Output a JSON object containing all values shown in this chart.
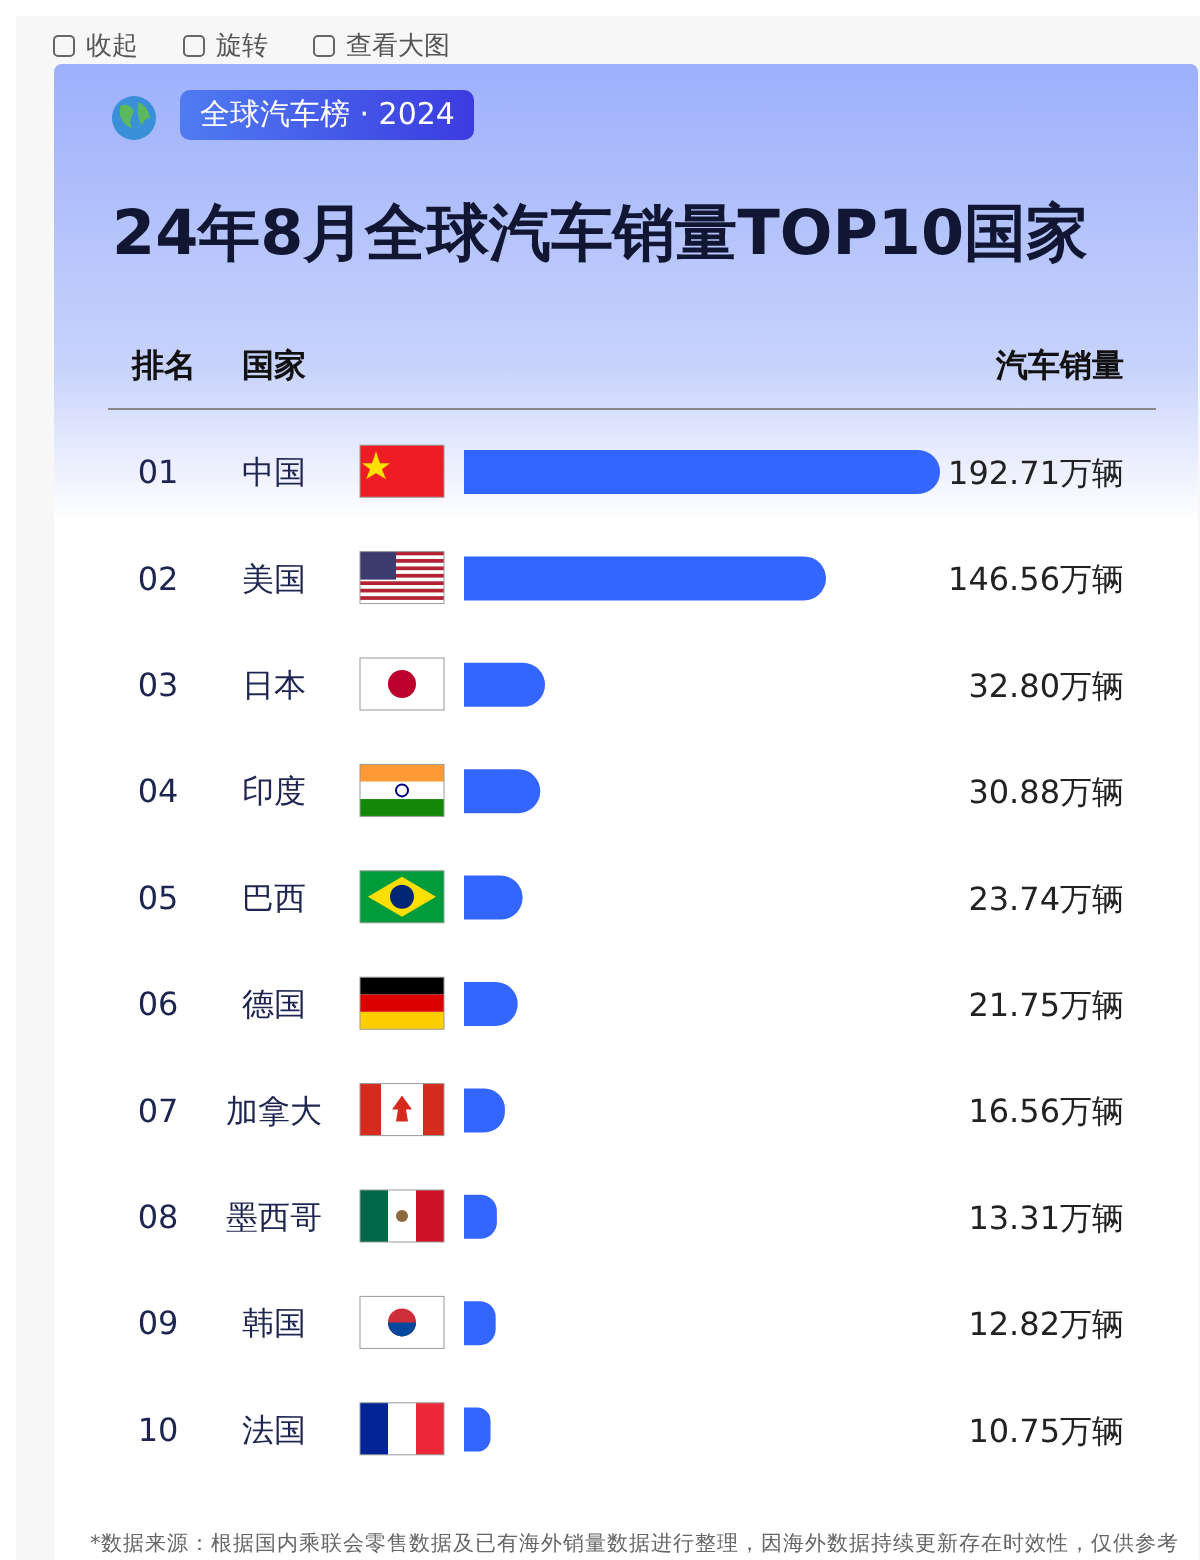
{
  "chart_data": {
    "type": "bar",
    "orientation": "horizontal",
    "title": "24年8月全球汽车销量TOP10国家",
    "subtitle": "全球汽车榜 · 2024",
    "ylabel": "国家",
    "xlabel": "汽车销量",
    "categories": [
      "中国",
      "美国",
      "日本",
      "印度",
      "巴西",
      "德国",
      "加拿大",
      "墨西哥",
      "韩国",
      "法国"
    ],
    "values": [
      192.71,
      146.56,
      32.8,
      30.88,
      23.74,
      21.75,
      16.56,
      13.31,
      12.82,
      10.75
    ],
    "value_labels": [
      "192.71万辆",
      "146.56万辆",
      "32.80万辆",
      "30.88万辆",
      "23.74万辆",
      "21.75万辆",
      "16.56万辆",
      "13.31万辆",
      "12.82万辆",
      "10.75万辆"
    ],
    "color": "#3366ff",
    "grid": false,
    "legend": false,
    "annotations": [
      "收起",
      "旋转",
      "查看大图",
      "排名",
      "01",
      "02",
      "03",
      "04",
      "05",
      "06",
      "07",
      "08",
      "09",
      "10",
      "*数据来源：根据国内乘联会零售数据及已有海外销量数据进行整理，因海外数据持续更新存在时效性，仅供参考"
    ]
  }
}
